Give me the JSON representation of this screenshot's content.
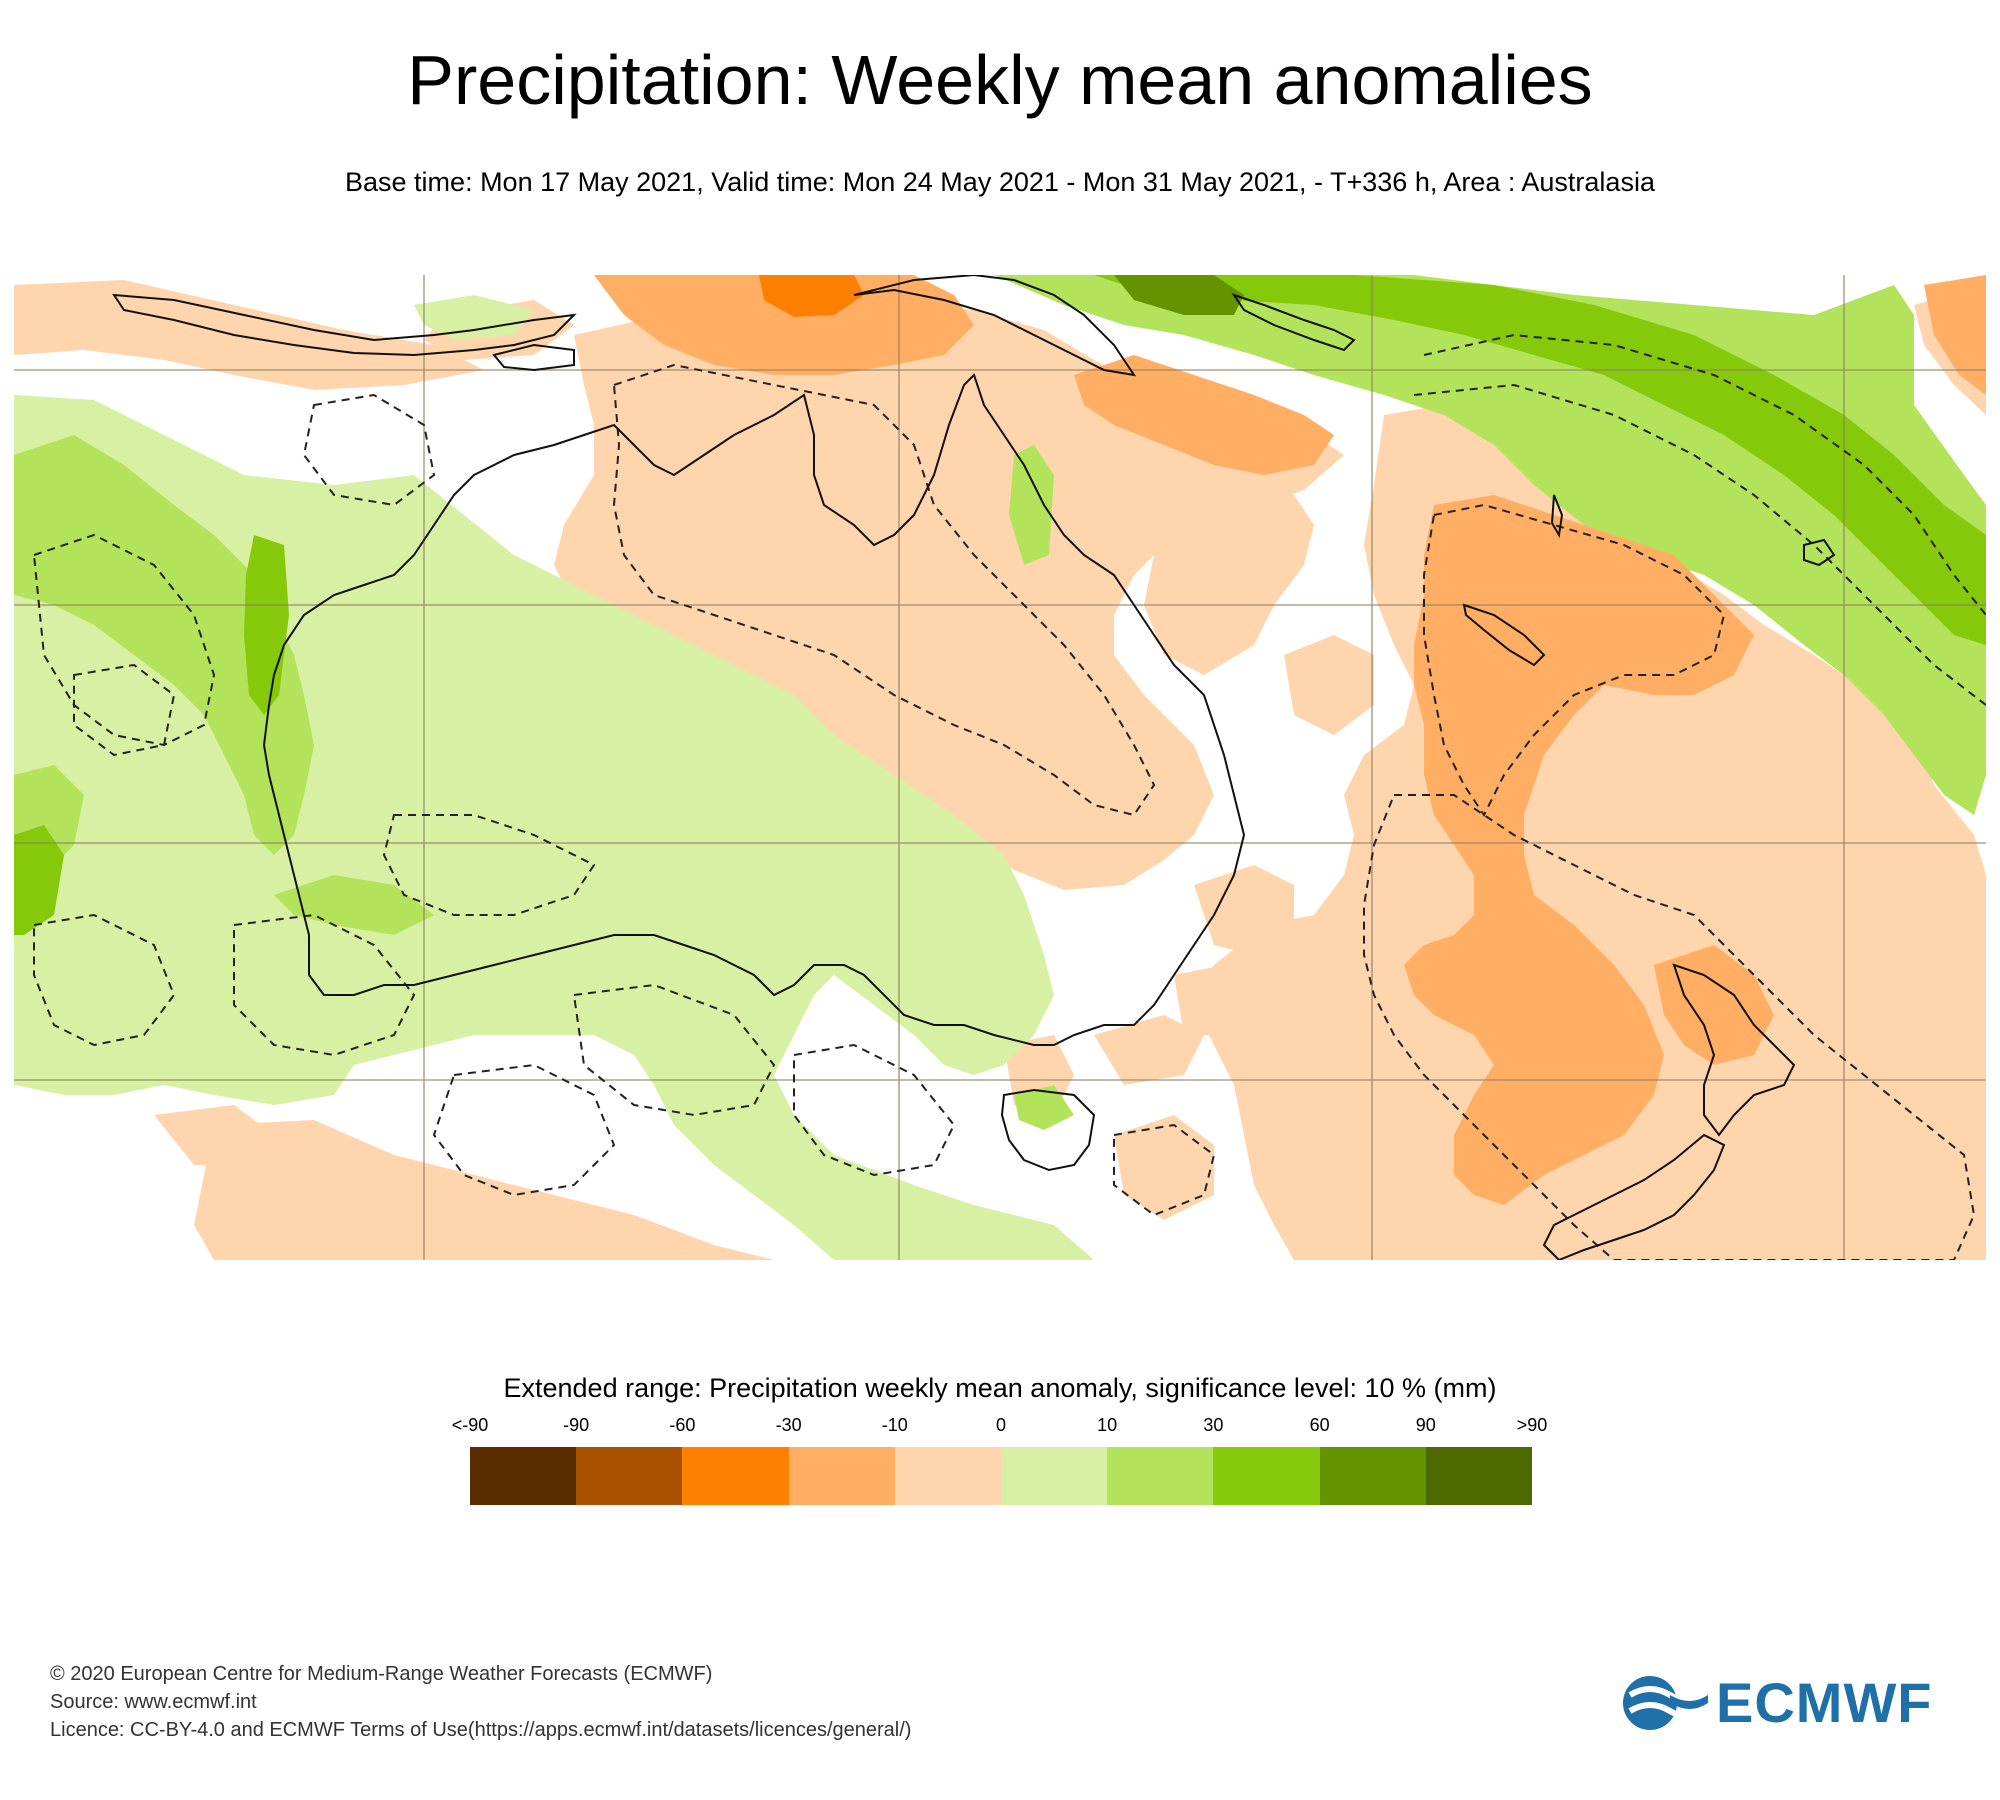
{
  "title": "Precipitation: Weekly mean anomalies",
  "subtitle": "Base time: Mon 17 May 2021, Valid time: Mon 24 May 2021 - Mon 31 May 2021, - T+336 h, Area : Australasia",
  "legend": {
    "title": "Extended range: Precipitation weekly mean anomaly, significance level: 10 % (mm)",
    "ticks": [
      "<-90",
      "-90",
      "-60",
      "-30",
      "-10",
      "0",
      "10",
      "30",
      "60",
      "90",
      ">90"
    ],
    "colors": [
      "#5a2d00",
      "#a85200",
      "#ff7f00",
      "#ffae63",
      "#ffd5ad",
      "#d8f0a3",
      "#b3e35a",
      "#86c80a",
      "#639400",
      "#4c6a00"
    ]
  },
  "footer": {
    "copyright": "© 2020 European Centre for Medium-Range Weather Forecasts (ECMWF)",
    "source": "Source: www.ecmwf.int",
    "licence": "Licence: CC-BY-4.0 and ECMWF Terms of Use(https://apps.ecmwf.int/datasets/licences/general/)"
  },
  "logo": {
    "text": "ECMWF",
    "color": "#1f6fa8"
  }
}
